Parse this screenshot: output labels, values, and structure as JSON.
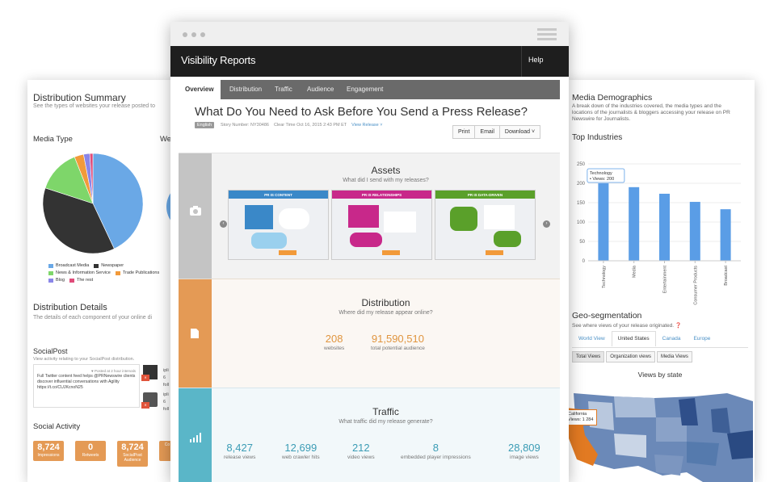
{
  "left_card": {
    "title": "Distribution Summary",
    "subtitle": "See the types of websites your release posted to",
    "media_type_label": "Media Type",
    "we_label": "We",
    "legend": [
      {
        "label": "Broadcast Media",
        "color": "#6aa8e6"
      },
      {
        "label": "Newspaper",
        "color": "#333333"
      },
      {
        "label": "News & Information Service",
        "color": "#7ed66a"
      },
      {
        "label": "Trade Publications",
        "color": "#f29a3a"
      },
      {
        "label": "Blog",
        "color": "#8a86e8"
      },
      {
        "label": "The rest",
        "color": "#e04c7a"
      }
    ],
    "pie": [
      {
        "label": "Broadcast Media",
        "value": 43,
        "color": "#6aa8e6"
      },
      {
        "label": "Newspaper",
        "value": 37,
        "color": "#333333"
      },
      {
        "label": "News & Information Service",
        "value": 14,
        "color": "#7ed66a"
      },
      {
        "label": "Trade Publications",
        "value": 3,
        "color": "#f29a3a"
      },
      {
        "label": "Blog",
        "value": 2,
        "color": "#8a86e8"
      },
      {
        "label": "The rest",
        "value": 1,
        "color": "#e04c7a"
      }
    ],
    "details_title": "Distribution Details",
    "details_sub": "The details of each component of your online di",
    "socialpost_title": "SocialPost",
    "socialpost_sub": "View activity relating to your SocialPost distribution.",
    "posted_note": "Posted at 2 hour intervals",
    "tweet_text": "Full Twitter content feed helps @PRNewswire clients discover influential conversations with Agility https://t.co/CUJKcnoN25",
    "side_texts": [
      "ipli",
      "6",
      "foll",
      "ipli",
      "6",
      "foll"
    ],
    "social_activity_title": "Social Activity",
    "tiles": [
      {
        "value": "8,724",
        "label": "Impressions"
      },
      {
        "value": "0",
        "label": "Retweets"
      },
      {
        "value": "8,724",
        "label": "SocialPost Audience"
      },
      {
        "value": "",
        "label": "Co"
      }
    ]
  },
  "right_card": {
    "title": "Media Demographics",
    "description": "A break down of the industries covered, the media types and the locations of the journalists & bloggers accessing your release on PR Newswire for Journalists.",
    "top_industries": "Top Industries",
    "geo_title": "Geo-segmentation",
    "geo_sub": "See where views of your release originated.",
    "geo_tabs": [
      "World View",
      "United States",
      "Canada",
      "Europe"
    ],
    "view_buttons": [
      "Total Views",
      "Organization views",
      "Media Views"
    ],
    "map_title": "Views by state",
    "map_tooltip_state": "California",
    "map_tooltip_value": "Views: 1 284"
  },
  "chart_data": {
    "type": "bar",
    "categories": [
      "Technology",
      "Media",
      "Entertainment",
      "Consumer Products",
      "Broadcast"
    ],
    "values": [
      200,
      190,
      173,
      152,
      133
    ],
    "ylim": [
      0,
      250
    ],
    "yticks": [
      0,
      50,
      100,
      150,
      200,
      250
    ],
    "color": "#5a9de6",
    "tooltip": {
      "category": "Technology",
      "series": "Views",
      "value": 200
    }
  },
  "main": {
    "brand": "Visibility Reports",
    "help": "Help",
    "tabs": [
      "Overview",
      "Distribution",
      "Traffic",
      "Audience",
      "Engagement"
    ],
    "page_title": "What Do You Need to Ask Before You Send a Press Release?",
    "language_tag": "English",
    "story_number": "Story Number: NY30486",
    "clear_time": "Clear Time Oct 16, 2015 2:43 PM ET",
    "view_release": "View Release ˅",
    "actions": [
      "Print",
      "Email",
      "Download ˅"
    ],
    "assets": {
      "title": "Assets",
      "subtitle": "What did I send with my releases?",
      "thumbs": [
        {
          "caption": "PR IS CONTENT",
          "color": "#3a88c8"
        },
        {
          "caption": "PR IS RELATIONSHIPS",
          "color": "#c8288a"
        },
        {
          "caption": "PR IS DATA-DRIVEN",
          "color": "#5aa02a"
        }
      ]
    },
    "distribution": {
      "title": "Distribution",
      "subtitle": "Where did my release appear online?",
      "stats": [
        {
          "value": "208",
          "label": "websites"
        },
        {
          "value": "91,590,510",
          "label": "total potential audience"
        }
      ]
    },
    "traffic": {
      "title": "Traffic",
      "subtitle": "What traffic did my release generate?",
      "stats": [
        {
          "value": "8,427",
          "label": "release views"
        },
        {
          "value": "12,699",
          "label": "web crawler hits"
        },
        {
          "value": "212",
          "label": "video views"
        },
        {
          "value": "8",
          "label": "embedded player impressions"
        },
        {
          "value": "28,809",
          "label": "image views"
        }
      ]
    },
    "colors": {
      "assets_bar": "#c4c4c4",
      "distribution_bar": "#e49a55",
      "traffic_bar": "#5ab6c8",
      "distribution_value": "#e0953f",
      "traffic_value": "#3b9cb5"
    }
  }
}
